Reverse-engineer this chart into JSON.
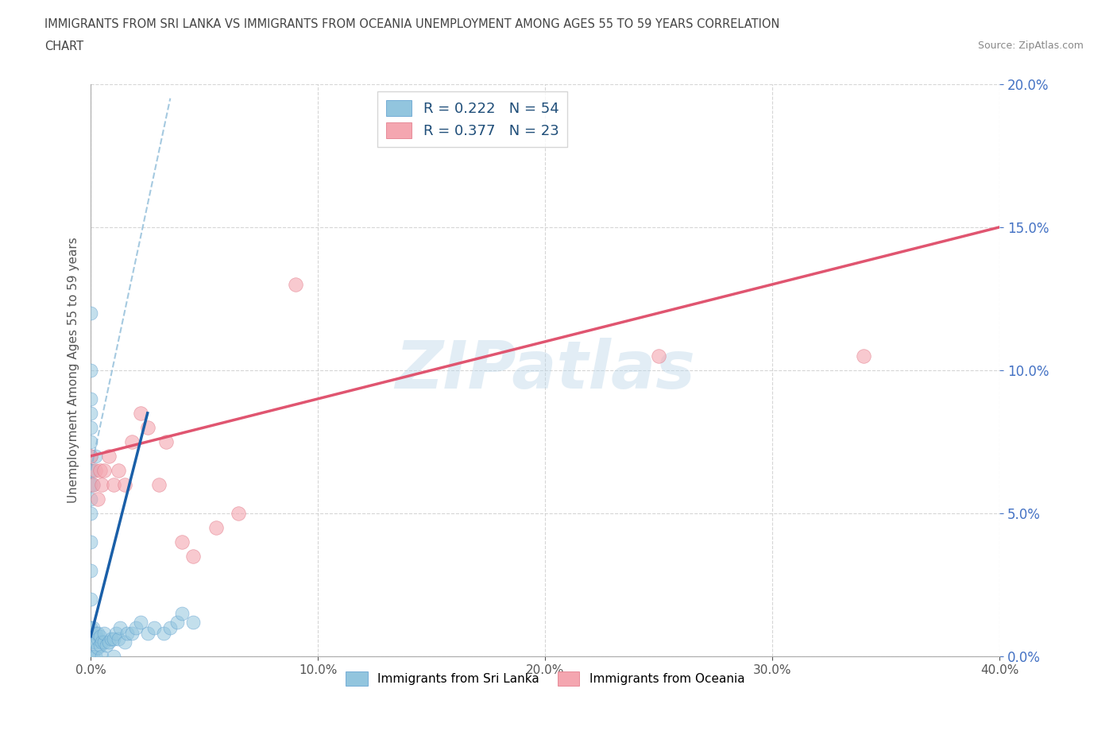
{
  "title_line1": "IMMIGRANTS FROM SRI LANKA VS IMMIGRANTS FROM OCEANIA UNEMPLOYMENT AMONG AGES 55 TO 59 YEARS CORRELATION",
  "title_line2": "CHART",
  "source_text": "Source: ZipAtlas.com",
  "ylabel": "Unemployment Among Ages 55 to 59 years",
  "xlim": [
    0.0,
    0.4
  ],
  "ylim": [
    0.0,
    0.2
  ],
  "sri_lanka_color": "#92c5de",
  "oceania_color": "#f4a6b0",
  "sri_lanka_label": "Immigrants from Sri Lanka",
  "oceania_label": "Immigrants from Oceania",
  "sri_lanka_R": 0.222,
  "sri_lanka_N": 54,
  "oceania_R": 0.377,
  "oceania_N": 23,
  "sri_lanka_x": [
    0.0,
    0.0,
    0.0,
    0.0,
    0.0,
    0.0,
    0.0,
    0.0,
    0.0,
    0.0,
    0.0,
    0.0,
    0.0,
    0.0,
    0.0,
    0.0,
    0.001,
    0.001,
    0.001,
    0.001,
    0.001,
    0.002,
    0.002,
    0.002,
    0.002,
    0.003,
    0.003,
    0.003,
    0.004,
    0.004,
    0.005,
    0.005,
    0.006,
    0.006,
    0.007,
    0.008,
    0.009,
    0.01,
    0.01,
    0.011,
    0.012,
    0.013,
    0.015,
    0.016,
    0.018,
    0.02,
    0.022,
    0.025,
    0.028,
    0.032,
    0.035,
    0.038,
    0.04,
    0.045
  ],
  "sri_lanka_y": [
    0.0,
    0.01,
    0.02,
    0.03,
    0.04,
    0.05,
    0.055,
    0.06,
    0.065,
    0.07,
    0.075,
    0.08,
    0.085,
    0.09,
    0.1,
    0.12,
    0.0,
    0.005,
    0.01,
    0.06,
    0.065,
    0.0,
    0.005,
    0.008,
    0.07,
    0.003,
    0.006,
    0.008,
    0.004,
    0.007,
    0.0,
    0.005,
    0.005,
    0.008,
    0.004,
    0.005,
    0.006,
    0.0,
    0.006,
    0.008,
    0.006,
    0.01,
    0.005,
    0.008,
    0.008,
    0.01,
    0.012,
    0.008,
    0.01,
    0.008,
    0.01,
    0.012,
    0.015,
    0.012
  ],
  "oceania_x": [
    0.0,
    0.001,
    0.002,
    0.003,
    0.004,
    0.005,
    0.006,
    0.008,
    0.01,
    0.012,
    0.015,
    0.018,
    0.022,
    0.025,
    0.03,
    0.033,
    0.04,
    0.045,
    0.055,
    0.065,
    0.09,
    0.25,
    0.34
  ],
  "oceania_y": [
    0.07,
    0.06,
    0.065,
    0.055,
    0.065,
    0.06,
    0.065,
    0.07,
    0.06,
    0.065,
    0.06,
    0.075,
    0.085,
    0.08,
    0.06,
    0.075,
    0.04,
    0.035,
    0.045,
    0.05,
    0.13,
    0.105,
    0.105
  ],
  "sl_reg_line": [
    [
      0.0,
      0.007
    ],
    [
      0.025,
      0.085
    ]
  ],
  "sl_dash_line": [
    [
      0.0,
      0.065
    ],
    [
      0.035,
      0.195
    ]
  ],
  "oc_reg_line": [
    [
      0.0,
      0.07
    ],
    [
      0.4,
      0.15
    ]
  ],
  "watermark": "ZIPatlas",
  "background_color": "#ffffff",
  "grid_color": "#cccccc",
  "title_color": "#444444",
  "axis_label_color": "#555555",
  "tick_color": "#4472c4",
  "legend_text_color": "#1f4e79"
}
